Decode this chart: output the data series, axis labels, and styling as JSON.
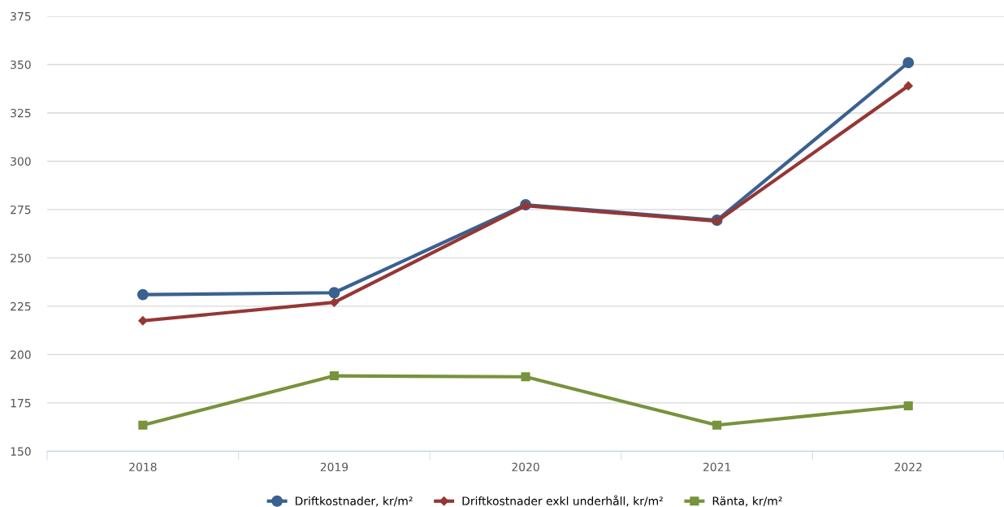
{
  "chart_data": {
    "type": "line",
    "categories": [
      "2018",
      "2019",
      "2020",
      "2021",
      "2022"
    ],
    "series": [
      {
        "name": "Driftkostnader, kr/m²",
        "color": "#3a6190",
        "marker": "circle",
        "values": [
          231,
          232,
          277.5,
          269.5,
          351
        ]
      },
      {
        "name": "Driftkostnader exkl underhåll, kr/m²",
        "color": "#953735",
        "marker": "diamond",
        "values": [
          217.5,
          227,
          277,
          269,
          339
        ]
      },
      {
        "name": "Ränta, kr/m²",
        "color": "#77933c",
        "marker": "square",
        "values": [
          163.5,
          189,
          188.5,
          163.5,
          173.5
        ]
      }
    ],
    "ylim": [
      150,
      375
    ],
    "yticks": [
      150,
      175,
      200,
      225,
      250,
      275,
      300,
      325,
      350,
      375
    ],
    "grid": "y",
    "legend": "bottom",
    "line_style": "solid"
  }
}
